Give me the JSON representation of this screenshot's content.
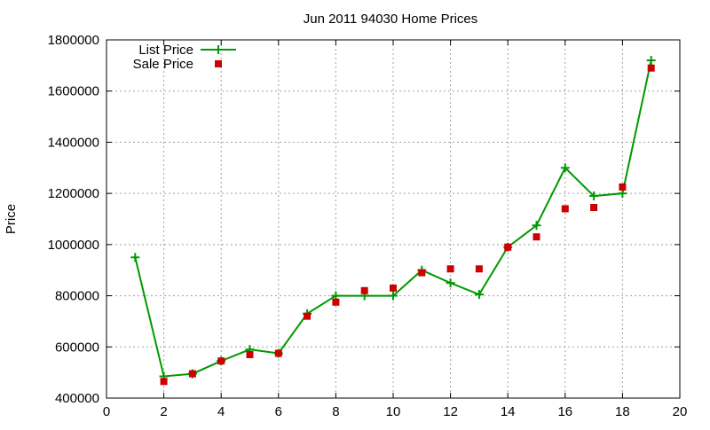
{
  "chart_data": {
    "type": "line",
    "title": "Jun 2011 94030 Home Prices",
    "xlabel": "",
    "ylabel": "Price",
    "xlim": [
      0,
      20
    ],
    "ylim": [
      400000,
      1800000
    ],
    "x_ticks": [
      0,
      2,
      4,
      6,
      8,
      10,
      12,
      14,
      16,
      18,
      20
    ],
    "y_ticks": [
      400000,
      600000,
      800000,
      1000000,
      1200000,
      1400000,
      1600000,
      1800000
    ],
    "grid": true,
    "legend_position": "top-left",
    "series": [
      {
        "name": "List Price",
        "style": "lines-and-points",
        "marker": "plus",
        "color": "#009900",
        "x": [
          1,
          2,
          3,
          4,
          5,
          6,
          7,
          8,
          9,
          10,
          11,
          12,
          13,
          14,
          15,
          16,
          17,
          18,
          19
        ],
        "values": [
          950000,
          485000,
          495000,
          545000,
          590000,
          575000,
          730000,
          800000,
          800000,
          800000,
          900000,
          850000,
          805000,
          990000,
          1075000,
          1300000,
          1190000,
          1200000,
          1720000
        ]
      },
      {
        "name": "Sale Price",
        "style": "points",
        "marker": "square",
        "color": "#cc0000",
        "x": [
          2,
          3,
          4,
          5,
          6,
          7,
          8,
          9,
          10,
          11,
          12,
          13,
          14,
          15,
          16,
          17,
          18,
          19
        ],
        "values": [
          465000,
          495000,
          545000,
          570000,
          575000,
          720000,
          775000,
          820000,
          830000,
          890000,
          905000,
          905000,
          990000,
          1030000,
          1140000,
          1145000,
          1225000,
          1690000
        ]
      }
    ]
  }
}
